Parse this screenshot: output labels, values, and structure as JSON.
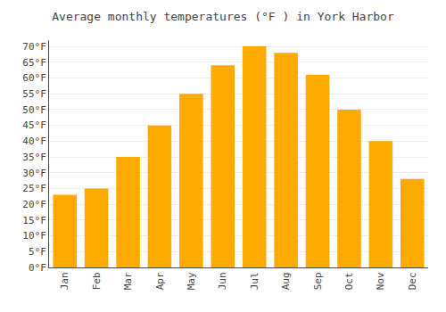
{
  "chart_data": {
    "type": "bar",
    "title": "Average monthly temperatures (°F ) in York Harbor",
    "categories": [
      "Jan",
      "Feb",
      "Mar",
      "Apr",
      "May",
      "Jun",
      "Jul",
      "Aug",
      "Sep",
      "Oct",
      "Nov",
      "Dec"
    ],
    "values": [
      23,
      25,
      35,
      45,
      55,
      64,
      70,
      68,
      61,
      50,
      40,
      28
    ],
    "color": "#FFAA00",
    "ylim": [
      0,
      72
    ],
    "yticks": [
      {
        "value": 0,
        "label": "0°F"
      },
      {
        "value": 5,
        "label": "5°F"
      },
      {
        "value": 10,
        "label": "10°F"
      },
      {
        "value": 15,
        "label": "15°F"
      },
      {
        "value": 20,
        "label": "20°F"
      },
      {
        "value": 25,
        "label": "25°F"
      },
      {
        "value": 30,
        "label": "30°F"
      },
      {
        "value": 35,
        "label": "35°F"
      },
      {
        "value": 40,
        "label": "40°F"
      },
      {
        "value": 45,
        "label": "45°F"
      },
      {
        "value": 50,
        "label": "50°F"
      },
      {
        "value": 55,
        "label": "55°F"
      },
      {
        "value": 60,
        "label": "60°F"
      },
      {
        "value": 65,
        "label": "65°F"
      },
      {
        "value": 70,
        "label": "70°F"
      }
    ],
    "grid": true
  }
}
